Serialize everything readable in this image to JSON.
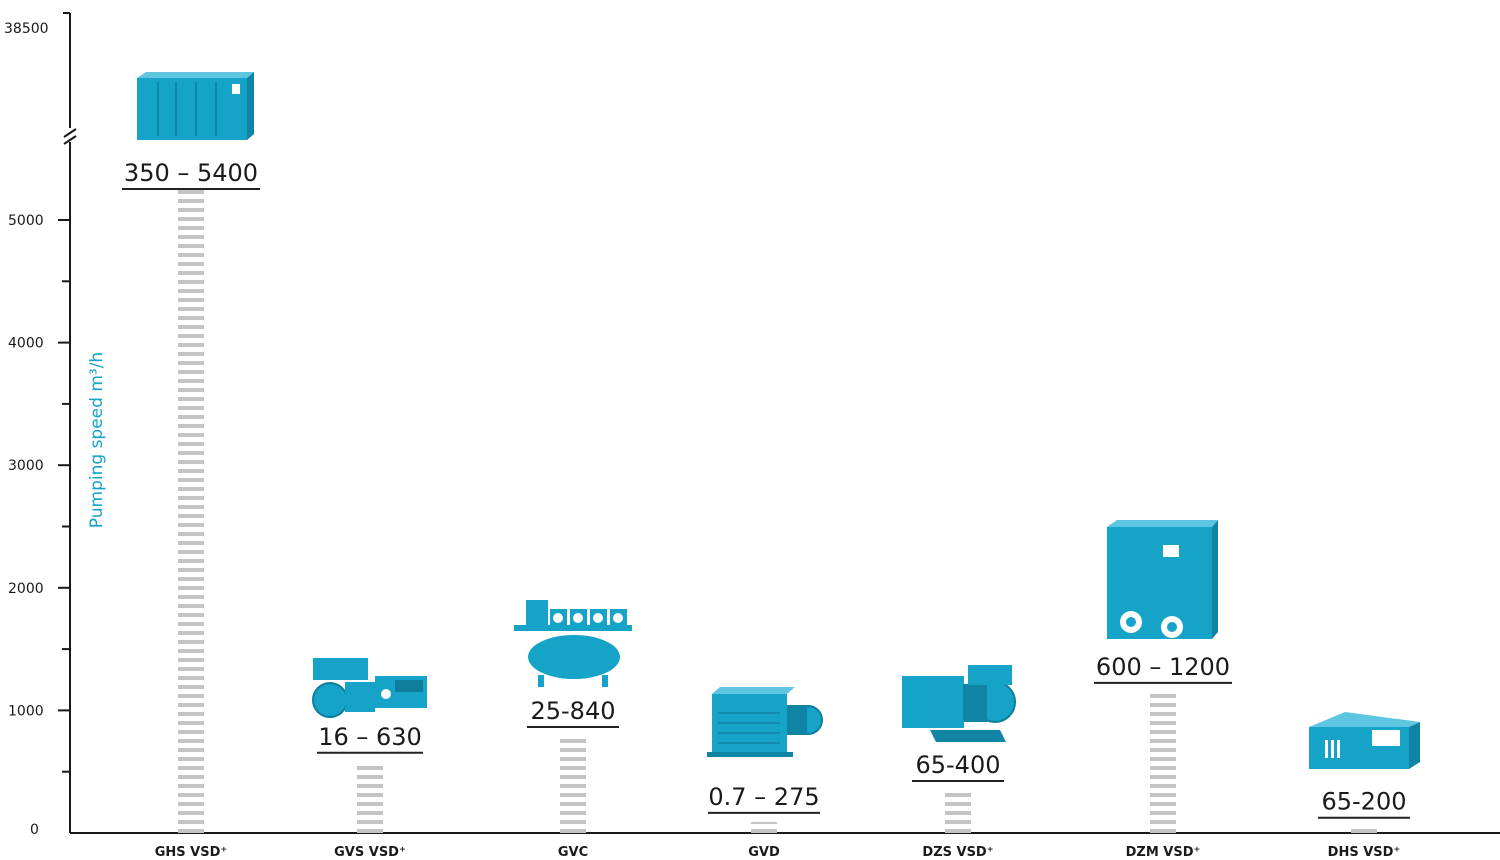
{
  "chart_data": {
    "type": "bar",
    "ylabel": "Pumping speed m³/h",
    "y_ticks": [
      "0",
      "1000",
      "2000",
      "3000",
      "4000",
      "5000",
      "38500"
    ],
    "y_axis_break": true,
    "ylim": [
      0,
      5400
    ],
    "categories": [
      "GHS VSD⁺",
      "GVS VSD⁺",
      "GVC",
      "GVD",
      "DZS VSD⁺",
      "DZM VSD⁺",
      "DHS VSD⁺"
    ],
    "range_labels": [
      "350 – 5400",
      "16 – 630",
      "25-840",
      "0.7 – 275",
      "65-400",
      "600 – 1200",
      "65-200"
    ],
    "values": [
      5400,
      630,
      840,
      140,
      400,
      1200,
      100
    ],
    "grid": false
  },
  "colors": {
    "accent": "#16a3c8",
    "bar": "#c4c4c4",
    "axis": "#1a1a1a"
  },
  "icons": [
    "pump-icon-ghs",
    "pump-icon-gvs",
    "pump-icon-gvc",
    "pump-icon-gvd",
    "pump-icon-dzs",
    "pump-icon-dzm",
    "pump-icon-dhs"
  ]
}
